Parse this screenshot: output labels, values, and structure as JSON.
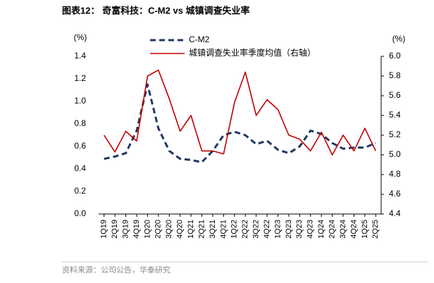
{
  "chart_data": {
    "type": "line",
    "title": "图表12：  奇富科技：C-M2 vs 城镇调查失业率",
    "source": "资料来源：公司公告，华泰研究",
    "y_unit": "(%)",
    "y2_unit": "(%)",
    "categories": [
      "1Q19",
      "2Q19",
      "3Q19",
      "4Q19",
      "1Q20",
      "2Q20",
      "3Q20",
      "4Q20",
      "1Q21",
      "2Q21",
      "3Q21",
      "4Q21",
      "1Q22",
      "2Q22",
      "3Q22",
      "4Q22",
      "1Q23",
      "2Q23",
      "3Q23",
      "4Q23",
      "1Q24",
      "2Q24",
      "3Q24",
      "4Q24",
      "1Q25",
      "2Q25"
    ],
    "series": [
      {
        "name": "C-M2",
        "color": "#1f3864",
        "dashed": true,
        "values": [
          0.49,
          0.51,
          0.54,
          0.74,
          1.15,
          0.76,
          0.56,
          0.49,
          0.48,
          0.46,
          0.56,
          0.7,
          0.73,
          0.7,
          0.62,
          0.65,
          0.57,
          0.54,
          0.6,
          0.74,
          0.71,
          0.63,
          0.58,
          0.59,
          0.59,
          0.63
        ]
      },
      {
        "name": "城镇调查失业率季度均值（右轴）",
        "color": "#c00000",
        "axis": "y2",
        "values": [
          5.2,
          5.03,
          5.24,
          5.14,
          5.8,
          5.86,
          5.57,
          5.24,
          5.4,
          5.04,
          5.04,
          5.01,
          5.53,
          5.84,
          5.4,
          5.56,
          5.46,
          5.2,
          5.16,
          5.04,
          5.23,
          5.0,
          5.2,
          5.04,
          5.27,
          5.04
        ]
      }
    ],
    "ylim": [
      0,
      1.4
    ],
    "yticks": [
      {
        "value": 0,
        "label": "0.0"
      },
      0.2,
      0.4,
      0.6,
      0.8,
      {
        "value": 1,
        "label": "1.0"
      },
      1.2,
      1.4
    ],
    "y2lim": [
      4.4,
      6.0
    ],
    "y2ticks": [
      4.4,
      4.6,
      4.8,
      {
        "value": 5,
        "label": "5.0"
      },
      5.2,
      5.4,
      5.6,
      5.8,
      {
        "value": 6,
        "label": "6.0"
      }
    ]
  }
}
